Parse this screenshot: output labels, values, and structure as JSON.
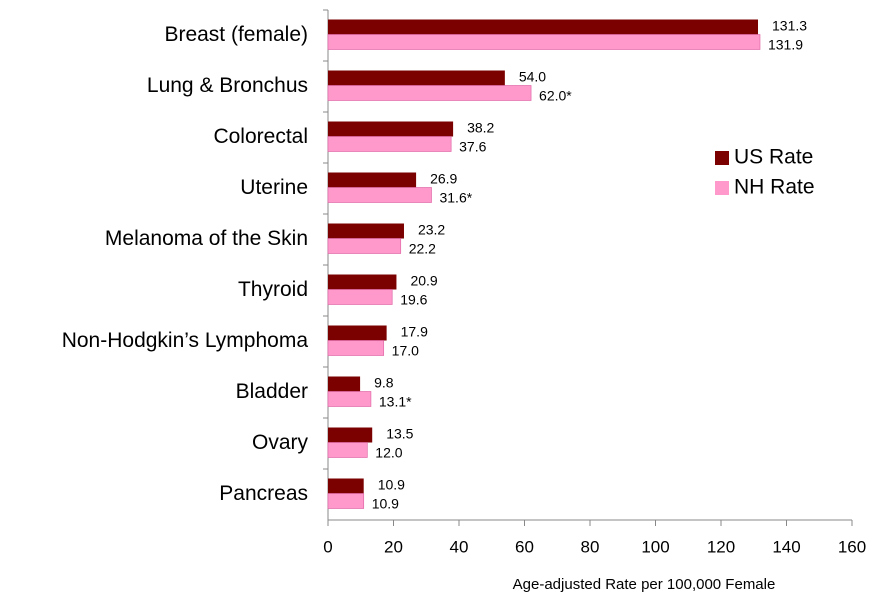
{
  "chart_data": {
    "type": "hbar",
    "categories": [
      "Breast (female)",
      "Lung & Bronchus",
      "Colorectal",
      "Uterine",
      "Melanoma of the Skin",
      "Thyroid",
      "Non-Hodgkin’s Lymphoma",
      "Bladder",
      "Ovary",
      "Pancreas"
    ],
    "series": [
      {
        "name": "US Rate",
        "color": "#7b0000",
        "values": [
          131.3,
          54.0,
          38.2,
          26.9,
          23.2,
          20.9,
          17.9,
          9.8,
          13.5,
          10.9
        ],
        "value_labels": [
          "131.3",
          "54.0",
          "38.2",
          "26.9",
          "23.2",
          "20.9",
          "17.9",
          "9.8",
          "13.5",
          "10.9"
        ]
      },
      {
        "name": "NH Rate",
        "color": "#ff99cc",
        "values": [
          131.9,
          62.0,
          37.6,
          31.6,
          22.2,
          19.6,
          17.0,
          13.1,
          12.0,
          10.9
        ],
        "value_labels": [
          "131.9",
          "62.0*",
          "37.6",
          "31.6*",
          "22.2",
          "19.6",
          "17.0",
          "13.1*",
          "12.0",
          "10.9"
        ]
      }
    ],
    "x_label": "Age-adjusted Rate per 100,000 Female",
    "xlim": [
      0,
      160
    ],
    "xticks": [
      0,
      20,
      40,
      60,
      80,
      100,
      120,
      140,
      160
    ],
    "legend": "right"
  }
}
